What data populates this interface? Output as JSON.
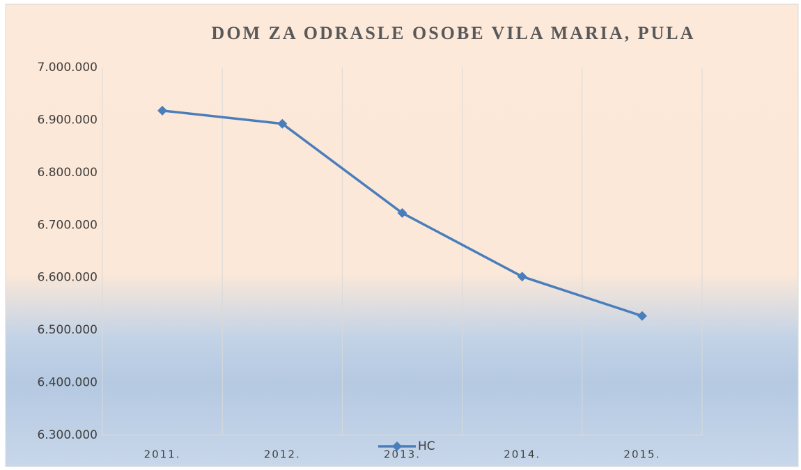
{
  "chart_data": {
    "type": "line",
    "title": "DOM ZA ODRASLE OSOBE VILA MARIA, PULA",
    "categories": [
      "2011.",
      "2012.",
      "2013.",
      "2014.",
      "2015."
    ],
    "series": [
      {
        "name": "HC",
        "color": "#4a7ebb",
        "values": [
          6918000,
          6893000,
          6723000,
          6602000,
          6527000
        ]
      }
    ],
    "ylim": [
      6300000,
      7000000
    ],
    "yticks": [
      {
        "value": 6300000,
        "label": "6.300.000"
      },
      {
        "value": 6400000,
        "label": "6.400.000"
      },
      {
        "value": 6500000,
        "label": "6.500.000"
      },
      {
        "value": 6600000,
        "label": "6.600.000"
      },
      {
        "value": 6700000,
        "label": "6.700.000"
      },
      {
        "value": 6800000,
        "label": "6.800.000"
      },
      {
        "value": 6900000,
        "label": "6.900.000"
      },
      {
        "value": 7000000,
        "label": "7.000.000"
      }
    ],
    "grid": "vertical",
    "legend": "bottom"
  }
}
